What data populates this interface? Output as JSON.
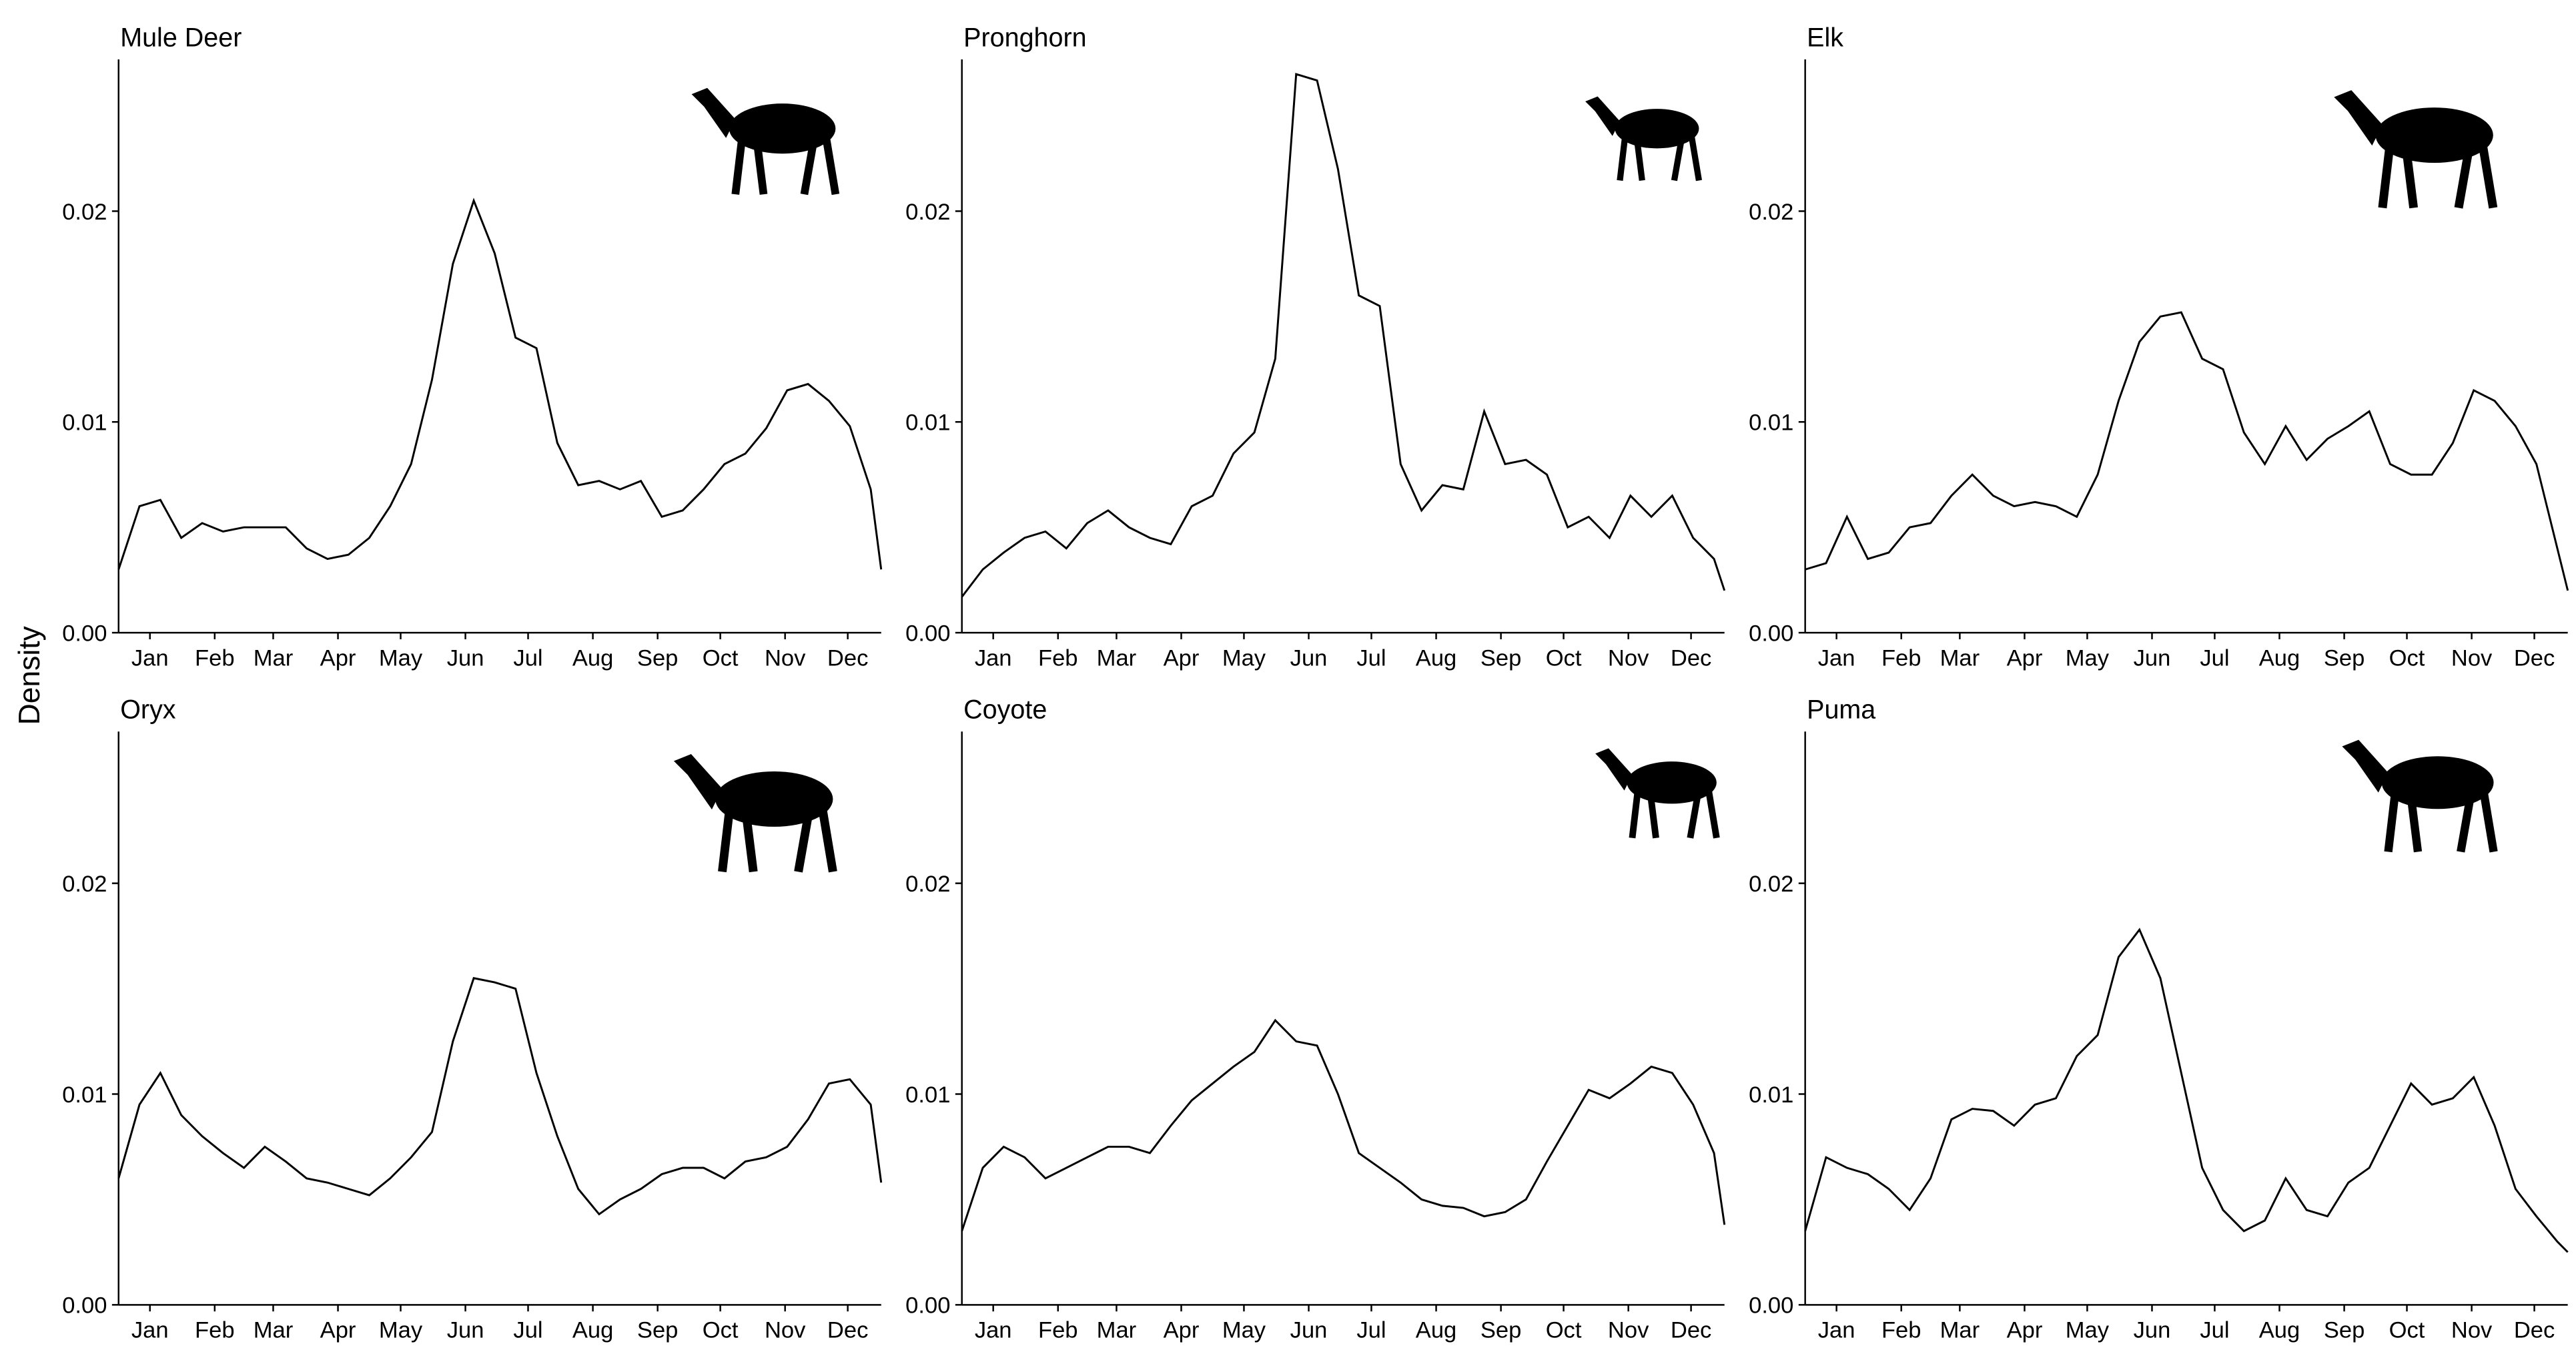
{
  "ylabel": "Density",
  "chart_data": [
    {
      "type": "line",
      "title": "Mule Deer",
      "x": [
        0,
        10,
        20,
        30,
        40,
        50,
        60,
        70,
        80,
        90,
        100,
        110,
        120,
        130,
        140,
        150,
        160,
        170,
        180,
        190,
        200,
        210,
        220,
        230,
        240,
        250,
        260,
        270,
        280,
        290,
        300,
        310,
        320,
        330,
        340,
        350,
        360,
        365
      ],
      "values": [
        0.003,
        0.006,
        0.0063,
        0.0045,
        0.0052,
        0.0048,
        0.005,
        0.005,
        0.005,
        0.004,
        0.0035,
        0.0037,
        0.0045,
        0.006,
        0.008,
        0.012,
        0.0175,
        0.0205,
        0.018,
        0.014,
        0.0135,
        0.009,
        0.007,
        0.0072,
        0.0068,
        0.0072,
        0.0055,
        0.0058,
        0.0068,
        0.008,
        0.0085,
        0.0097,
        0.0115,
        0.0118,
        0.011,
        0.0098,
        0.0068,
        0.003
      ],
      "xlim": [
        0,
        365
      ],
      "ylim": [
        0,
        0.0272
      ],
      "xticks": [
        {
          "value": 15,
          "label": "Jan"
        },
        {
          "value": 46,
          "label": "Feb"
        },
        {
          "value": 74,
          "label": "Mar"
        },
        {
          "value": 105,
          "label": "Apr"
        },
        {
          "value": 135,
          "label": "May"
        },
        {
          "value": 166,
          "label": "Jun"
        },
        {
          "value": 196,
          "label": "Jul"
        },
        {
          "value": 227,
          "label": "Aug"
        },
        {
          "value": 258,
          "label": "Sep"
        },
        {
          "value": 288,
          "label": "Oct"
        },
        {
          "value": 319,
          "label": "Nov"
        },
        {
          "value": 349,
          "label": "Dec"
        }
      ],
      "yticks": [
        {
          "value": 0,
          "label": "0.00"
        },
        0.01,
        0.02
      ],
      "color": "#000000"
    },
    {
      "type": "line",
      "title": "Pronghorn",
      "x": [
        0,
        10,
        20,
        30,
        40,
        50,
        60,
        70,
        80,
        90,
        100,
        110,
        120,
        130,
        140,
        150,
        160,
        170,
        180,
        190,
        200,
        210,
        220,
        230,
        240,
        250,
        260,
        270,
        280,
        290,
        300,
        310,
        320,
        330,
        340,
        350,
        360,
        365
      ],
      "values": [
        0.0017,
        0.003,
        0.0038,
        0.0045,
        0.0048,
        0.004,
        0.0052,
        0.0058,
        0.005,
        0.0045,
        0.0042,
        0.006,
        0.0065,
        0.0085,
        0.0095,
        0.013,
        0.0265,
        0.0262,
        0.022,
        0.016,
        0.0155,
        0.008,
        0.0058,
        0.007,
        0.0068,
        0.0105,
        0.008,
        0.0082,
        0.0075,
        0.005,
        0.0055,
        0.0045,
        0.0065,
        0.0055,
        0.0065,
        0.0045,
        0.0035,
        0.002
      ],
      "xlim": [
        0,
        365
      ],
      "ylim": [
        0,
        0.0272
      ],
      "xticks": [
        {
          "value": 15,
          "label": "Jan"
        },
        {
          "value": 46,
          "label": "Feb"
        },
        {
          "value": 74,
          "label": "Mar"
        },
        {
          "value": 105,
          "label": "Apr"
        },
        {
          "value": 135,
          "label": "May"
        },
        {
          "value": 166,
          "label": "Jun"
        },
        {
          "value": 196,
          "label": "Jul"
        },
        {
          "value": 227,
          "label": "Aug"
        },
        {
          "value": 258,
          "label": "Sep"
        },
        {
          "value": 288,
          "label": "Oct"
        },
        {
          "value": 319,
          "label": "Nov"
        },
        {
          "value": 349,
          "label": "Dec"
        }
      ],
      "yticks": [
        {
          "value": 0,
          "label": "0.00"
        },
        0.01,
        0.02
      ],
      "color": "#000000"
    },
    {
      "type": "line",
      "title": "Elk",
      "x": [
        0,
        10,
        20,
        30,
        40,
        50,
        60,
        70,
        80,
        90,
        100,
        110,
        120,
        130,
        140,
        150,
        160,
        170,
        180,
        190,
        200,
        210,
        220,
        230,
        240,
        250,
        260,
        270,
        280,
        290,
        300,
        310,
        320,
        330,
        340,
        350,
        360,
        365
      ],
      "values": [
        0.003,
        0.0033,
        0.0055,
        0.0035,
        0.0038,
        0.005,
        0.0052,
        0.0065,
        0.0075,
        0.0065,
        0.006,
        0.0062,
        0.006,
        0.0055,
        0.0075,
        0.011,
        0.0138,
        0.015,
        0.0152,
        0.013,
        0.0125,
        0.0095,
        0.008,
        0.0098,
        0.0082,
        0.0092,
        0.0098,
        0.0105,
        0.008,
        0.0075,
        0.0075,
        0.009,
        0.0115,
        0.011,
        0.0098,
        0.008,
        0.004,
        0.002
      ],
      "xlim": [
        0,
        365
      ],
      "ylim": [
        0,
        0.0272
      ],
      "xticks": [
        {
          "value": 15,
          "label": "Jan"
        },
        {
          "value": 46,
          "label": "Feb"
        },
        {
          "value": 74,
          "label": "Mar"
        },
        {
          "value": 105,
          "label": "Apr"
        },
        {
          "value": 135,
          "label": "May"
        },
        {
          "value": 166,
          "label": "Jun"
        },
        {
          "value": 196,
          "label": "Jul"
        },
        {
          "value": 227,
          "label": "Aug"
        },
        {
          "value": 258,
          "label": "Sep"
        },
        {
          "value": 288,
          "label": "Oct"
        },
        {
          "value": 319,
          "label": "Nov"
        },
        {
          "value": 349,
          "label": "Dec"
        }
      ],
      "yticks": [
        {
          "value": 0,
          "label": "0.00"
        },
        0.01,
        0.02
      ],
      "color": "#000000"
    },
    {
      "type": "line",
      "title": "Oryx",
      "x": [
        0,
        10,
        20,
        30,
        40,
        50,
        60,
        70,
        80,
        90,
        100,
        110,
        120,
        130,
        140,
        150,
        160,
        170,
        180,
        190,
        200,
        210,
        220,
        230,
        240,
        250,
        260,
        270,
        280,
        290,
        300,
        310,
        320,
        330,
        340,
        350,
        360,
        365
      ],
      "values": [
        0.006,
        0.0095,
        0.011,
        0.009,
        0.008,
        0.0072,
        0.0065,
        0.0075,
        0.0068,
        0.006,
        0.0058,
        0.0055,
        0.0052,
        0.006,
        0.007,
        0.0082,
        0.0125,
        0.0155,
        0.0153,
        0.015,
        0.011,
        0.008,
        0.0055,
        0.0043,
        0.005,
        0.0055,
        0.0062,
        0.0065,
        0.0065,
        0.006,
        0.0068,
        0.007,
        0.0075,
        0.0088,
        0.0105,
        0.0107,
        0.0095,
        0.0058
      ],
      "xlim": [
        0,
        365
      ],
      "ylim": [
        0,
        0.0272
      ],
      "xticks": [
        {
          "value": 15,
          "label": "Jan"
        },
        {
          "value": 46,
          "label": "Feb"
        },
        {
          "value": 74,
          "label": "Mar"
        },
        {
          "value": 105,
          "label": "Apr"
        },
        {
          "value": 135,
          "label": "May"
        },
        {
          "value": 166,
          "label": "Jun"
        },
        {
          "value": 196,
          "label": "Jul"
        },
        {
          "value": 227,
          "label": "Aug"
        },
        {
          "value": 258,
          "label": "Sep"
        },
        {
          "value": 288,
          "label": "Oct"
        },
        {
          "value": 319,
          "label": "Nov"
        },
        {
          "value": 349,
          "label": "Dec"
        }
      ],
      "yticks": [
        {
          "value": 0,
          "label": "0.00"
        },
        0.01,
        0.02
      ],
      "color": "#000000"
    },
    {
      "type": "line",
      "title": "Coyote",
      "x": [
        0,
        10,
        20,
        30,
        40,
        50,
        60,
        70,
        80,
        90,
        100,
        110,
        120,
        130,
        140,
        150,
        160,
        170,
        180,
        190,
        200,
        210,
        220,
        230,
        240,
        250,
        260,
        270,
        280,
        290,
        300,
        310,
        320,
        330,
        340,
        350,
        360,
        365
      ],
      "values": [
        0.0035,
        0.0065,
        0.0075,
        0.007,
        0.006,
        0.0065,
        0.007,
        0.0075,
        0.0075,
        0.0072,
        0.0085,
        0.0097,
        0.0105,
        0.0113,
        0.012,
        0.0135,
        0.0125,
        0.0123,
        0.01,
        0.0072,
        0.0065,
        0.0058,
        0.005,
        0.0047,
        0.0046,
        0.0042,
        0.0044,
        0.005,
        0.0068,
        0.0085,
        0.0102,
        0.0098,
        0.0105,
        0.0113,
        0.011,
        0.0095,
        0.0072,
        0.0038
      ],
      "xlim": [
        0,
        365
      ],
      "ylim": [
        0,
        0.0272
      ],
      "xticks": [
        {
          "value": 15,
          "label": "Jan"
        },
        {
          "value": 46,
          "label": "Feb"
        },
        {
          "value": 74,
          "label": "Mar"
        },
        {
          "value": 105,
          "label": "Apr"
        },
        {
          "value": 135,
          "label": "May"
        },
        {
          "value": 166,
          "label": "Jun"
        },
        {
          "value": 196,
          "label": "Jul"
        },
        {
          "value": 227,
          "label": "Aug"
        },
        {
          "value": 258,
          "label": "Sep"
        },
        {
          "value": 288,
          "label": "Oct"
        },
        {
          "value": 319,
          "label": "Nov"
        },
        {
          "value": 349,
          "label": "Dec"
        }
      ],
      "yticks": [
        {
          "value": 0,
          "label": "0.00"
        },
        0.01,
        0.02
      ],
      "color": "#000000"
    },
    {
      "type": "line",
      "title": "Puma",
      "x": [
        0,
        10,
        20,
        30,
        40,
        50,
        60,
        70,
        80,
        90,
        100,
        110,
        120,
        130,
        140,
        150,
        160,
        170,
        180,
        190,
        200,
        210,
        220,
        230,
        240,
        250,
        260,
        270,
        280,
        290,
        300,
        310,
        320,
        330,
        340,
        350,
        360,
        365
      ],
      "values": [
        0.0035,
        0.007,
        0.0065,
        0.0062,
        0.0055,
        0.0045,
        0.006,
        0.0088,
        0.0093,
        0.0092,
        0.0085,
        0.0095,
        0.0098,
        0.0118,
        0.0128,
        0.0165,
        0.0178,
        0.0155,
        0.011,
        0.0065,
        0.0045,
        0.0035,
        0.004,
        0.006,
        0.0045,
        0.0042,
        0.0058,
        0.0065,
        0.0085,
        0.0105,
        0.0095,
        0.0098,
        0.0108,
        0.0085,
        0.0055,
        0.0042,
        0.003,
        0.0025
      ],
      "xlim": [
        0,
        365
      ],
      "ylim": [
        0,
        0.0272
      ],
      "xticks": [
        {
          "value": 15,
          "label": "Jan"
        },
        {
          "value": 46,
          "label": "Feb"
        },
        {
          "value": 74,
          "label": "Mar"
        },
        {
          "value": 105,
          "label": "Apr"
        },
        {
          "value": 135,
          "label": "May"
        },
        {
          "value": 166,
          "label": "Jun"
        },
        {
          "value": 196,
          "label": "Jul"
        },
        {
          "value": 227,
          "label": "Aug"
        },
        {
          "value": 258,
          "label": "Sep"
        },
        {
          "value": 288,
          "label": "Oct"
        },
        {
          "value": 319,
          "label": "Nov"
        },
        {
          "value": 349,
          "label": "Dec"
        }
      ],
      "yticks": [
        {
          "value": 0,
          "label": "0.00"
        },
        0.01,
        0.02
      ],
      "color": "#000000"
    }
  ]
}
